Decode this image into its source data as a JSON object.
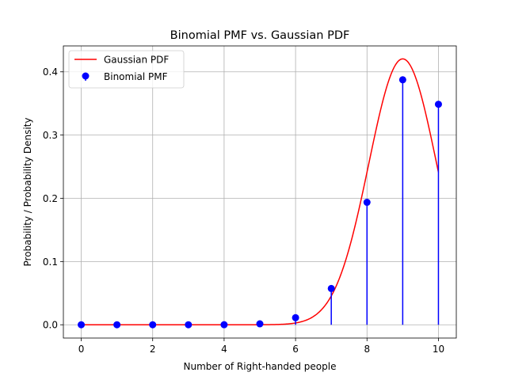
{
  "chart_data": {
    "type": "line",
    "title": "Binomial PMF vs. Gaussian PDF",
    "xlabel": "Number of Right-handed people",
    "ylabel": "Probability / Probability Density",
    "xlim": [
      -0.5,
      10.5
    ],
    "ylim": [
      -0.021,
      0.441
    ],
    "x_ticks": [
      0,
      2,
      4,
      6,
      8,
      10
    ],
    "y_ticks": [
      0.0,
      0.1,
      0.2,
      0.3,
      0.4
    ],
    "grid": true,
    "legend_position": "top-left",
    "series": [
      {
        "name": "Gaussian PDF",
        "kind": "line",
        "color": "#ff0000",
        "mean": 9,
        "std": 0.9487,
        "x_range": [
          0,
          10
        ]
      },
      {
        "name": "Binomial PMF",
        "kind": "stem",
        "color": "#0000ff",
        "x": [
          0,
          1,
          2,
          3,
          4,
          5,
          6,
          7,
          8,
          9,
          10
        ],
        "values": [
          0.0,
          0.0,
          0.0,
          0.0,
          0.0001,
          0.0015,
          0.0112,
          0.0574,
          0.1937,
          0.3874,
          0.3487
        ]
      }
    ]
  }
}
